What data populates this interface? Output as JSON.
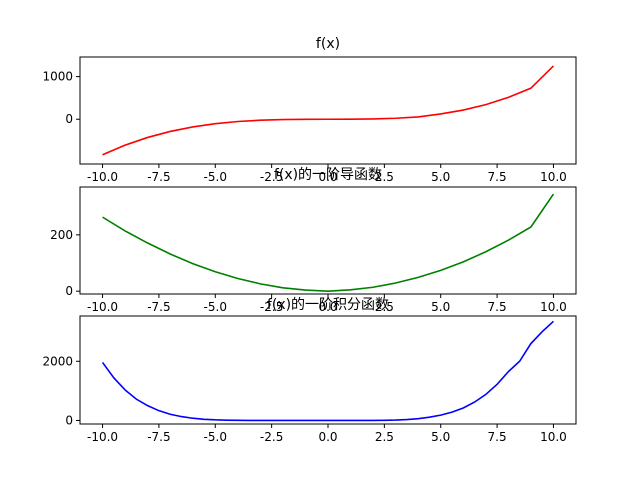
{
  "chart_data": [
    {
      "type": "line",
      "title": "f(x)",
      "xlabel": "",
      "ylabel": "",
      "xlim": [
        -11,
        11
      ],
      "ylim": [
        -1050,
        1460
      ],
      "x_ticks": [
        -10.0,
        -7.5,
        -5.0,
        -2.5,
        0.0,
        2.5,
        5.0,
        7.5,
        10.0
      ],
      "x_tick_labels": [
        "-10.0",
        "-7.5",
        "-5.0",
        "-2.5",
        "0.0",
        "2.5",
        "5.0",
        "7.5",
        "10.0"
      ],
      "y_ticks": [
        0,
        1000
      ],
      "y_tick_labels": [
        "0",
        "1000"
      ],
      "grid": false,
      "series": [
        {
          "color": "#ff0000",
          "x": [
            -10,
            -9,
            -8,
            -7,
            -6,
            -5,
            -4,
            -3,
            -2,
            -1,
            0,
            1,
            2,
            3,
            4,
            5,
            6,
            7,
            8,
            9,
            10
          ],
          "y": [
            -833,
            -608,
            -427,
            -286,
            -180,
            -104,
            -53,
            -23,
            -7,
            -1,
            0,
            1,
            7,
            23,
            53,
            125,
            216,
            343,
            512,
            729,
            1250
          ]
        }
      ]
    },
    {
      "type": "line",
      "title": "f(x)的一阶导函数",
      "xlabel": "",
      "ylabel": "",
      "xlim": [
        -11,
        11
      ],
      "ylim": [
        -10,
        370
      ],
      "x_ticks": [
        -10.0,
        -7.5,
        -5.0,
        -2.5,
        0.0,
        2.5,
        5.0,
        7.5,
        10.0
      ],
      "x_tick_labels": [
        "-10.0",
        "-7.5",
        "-5.0",
        "-2.5",
        "0.0",
        "2.5",
        "5.0",
        "7.5",
        "10.0"
      ],
      "y_ticks": [
        0,
        200
      ],
      "y_tick_labels": [
        "0",
        "200"
      ],
      "grid": false,
      "series": [
        {
          "color": "#008000",
          "x": [
            -10,
            -9,
            -8,
            -7,
            -6,
            -5,
            -4,
            -3,
            -2,
            -1,
            0,
            1,
            2,
            3,
            4,
            5,
            6,
            7,
            8,
            9,
            10
          ],
          "y": [
            263,
            214,
            171,
            132,
            98,
            69,
            45,
            26,
            12,
            4,
            0,
            5,
            14,
            29,
            49,
            74,
            104,
            140,
            181,
            228,
            345
          ]
        }
      ]
    },
    {
      "type": "line",
      "title": "f(x)的一阶积分函数",
      "xlabel": "",
      "ylabel": "",
      "xlim": [
        -11,
        11
      ],
      "ylim": [
        -120,
        3530
      ],
      "x_ticks": [
        -10.0,
        -7.5,
        -5.0,
        -2.5,
        0.0,
        2.5,
        5.0,
        7.5,
        10.0
      ],
      "x_tick_labels": [
        "-10.0",
        "-7.5",
        "-5.0",
        "-2.5",
        "0.0",
        "2.5",
        "5.0",
        "7.5",
        "10.0"
      ],
      "y_ticks": [
        0,
        2000
      ],
      "y_tick_labels": [
        "0",
        "2000"
      ],
      "grid": false,
      "series": [
        {
          "color": "#0000ff",
          "x": [
            -10,
            -9.5,
            -9,
            -8.5,
            -8,
            -7.5,
            -7,
            -6.5,
            -6,
            -5.5,
            -5,
            -4.5,
            -4,
            -3.5,
            -3,
            -2.5,
            -2,
            -1.5,
            -1,
            -0.5,
            0,
            0.5,
            1,
            1.5,
            2,
            2.5,
            3,
            3.5,
            4,
            4.5,
            5,
            5.5,
            6,
            6.5,
            7,
            7.5,
            8,
            8.5,
            9,
            9.5,
            10
          ],
          "y": [
            1960,
            1440,
            1030,
            720,
            500,
            330,
            210,
            130,
            75,
            40,
            20,
            9,
            3,
            1,
            0,
            0,
            0,
            0,
            0,
            0,
            0,
            0,
            0,
            0,
            0,
            4,
            12,
            30,
            60,
            110,
            180,
            280,
            420,
            620,
            880,
            1220,
            1650,
            2000,
            2600,
            3000,
            3350
          ]
        }
      ]
    }
  ]
}
